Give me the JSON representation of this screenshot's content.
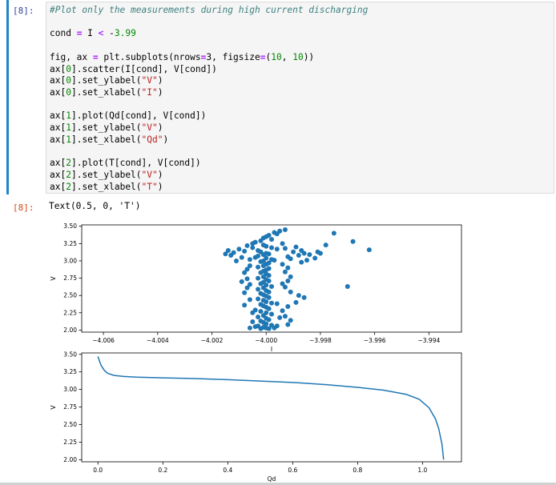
{
  "cell": {
    "in_prompt": "[8]:",
    "out_prompt": "[8]:",
    "output_text": "Text(0.5, 0, 'T')",
    "code_lines": [
      "#Plot only the measurements during high current discharging",
      "",
      "cond = I < -3.99",
      "",
      "fig, ax = plt.subplots(nrows=3, figsize=(10, 10))",
      "ax[0].scatter(I[cond], V[cond])",
      "ax[0].set_ylabel(\"V\")",
      "ax[0].set_xlabel(\"I\")",
      "",
      "ax[1].plot(Qd[cond], V[cond])",
      "ax[1].set_ylabel(\"V\")",
      "ax[1].set_xlabel(\"Qd\")",
      "",
      "ax[2].plot(T[cond], V[cond])",
      "ax[2].set_ylabel(\"V\")",
      "ax[2].set_xlabel(\"T\")"
    ]
  },
  "chart_data": [
    {
      "type": "scatter",
      "color": "#1f77b4",
      "xlabel": "I",
      "ylabel": "V",
      "xlim": [
        -4.0068,
        -3.9928
      ],
      "ylim": [
        1.97,
        3.52
      ],
      "xticks": [
        -4.006,
        -4.004,
        -4.002,
        -4.0,
        -3.998,
        -3.996,
        -3.994
      ],
      "xtick_labels": [
        "−4.006",
        "−4.004",
        "−4.002",
        "−4.000",
        "−3.998",
        "−3.996",
        "−3.994"
      ],
      "yticks": [
        2.0,
        2.25,
        2.5,
        2.75,
        3.0,
        3.25,
        3.5
      ],
      "ytick_labels": [
        "2.00",
        "2.25",
        "2.50",
        "2.75",
        "3.00",
        "3.25",
        "3.50"
      ],
      "points": [
        [
          -3.9993,
          3.45
        ],
        [
          -3.9995,
          3.43
        ],
        [
          -3.9997,
          3.41
        ],
        [
          -3.9996,
          3.39
        ],
        [
          -3.9999,
          3.37
        ],
        [
          -4.0,
          3.35
        ],
        [
          -4.0001,
          3.33
        ],
        [
          -3.9998,
          3.31
        ],
        [
          -4.0002,
          3.29
        ],
        [
          -4.0004,
          3.27
        ],
        [
          -4.0005,
          3.25
        ],
        [
          -4.0001,
          3.23
        ],
        [
          -4.0,
          3.21
        ],
        [
          -3.9998,
          3.19
        ],
        [
          -3.9996,
          3.17
        ],
        [
          -4.0003,
          3.15
        ],
        [
          -4.0002,
          3.13
        ],
        [
          -4.0,
          3.11
        ],
        [
          -3.9999,
          3.1
        ],
        [
          -4.0001,
          3.09
        ],
        [
          -4.0003,
          3.07
        ],
        [
          -4.0004,
          3.05
        ],
        [
          -4.0,
          3.04
        ],
        [
          -3.9998,
          3.02
        ],
        [
          -3.9997,
          3.01
        ],
        [
          -4.0001,
          3.0
        ],
        [
          -4.0002,
          2.99
        ],
        [
          -3.9999,
          2.97
        ],
        [
          -4.0,
          2.95
        ],
        [
          -4.0001,
          2.93
        ],
        [
          -4.0003,
          2.91
        ],
        [
          -3.9999,
          2.89
        ],
        [
          -4.0,
          2.87
        ],
        [
          -4.0001,
          2.85
        ],
        [
          -4.0002,
          2.83
        ],
        [
          -4.0,
          2.81
        ],
        [
          -3.9999,
          2.79
        ],
        [
          -4.0001,
          2.77
        ],
        [
          -4.0003,
          2.75
        ],
        [
          -4.0,
          2.73
        ],
        [
          -3.9999,
          2.71
        ],
        [
          -4.0001,
          2.69
        ],
        [
          -4.0002,
          2.67
        ],
        [
          -4.0,
          2.65
        ],
        [
          -3.9998,
          2.63
        ],
        [
          -4.0001,
          2.61
        ],
        [
          -4.0003,
          2.59
        ],
        [
          -4.0,
          2.57
        ],
        [
          -3.9999,
          2.55
        ],
        [
          -4.0002,
          2.53
        ],
        [
          -4.0001,
          2.51
        ],
        [
          -4.0,
          2.49
        ],
        [
          -3.9999,
          2.47
        ],
        [
          -4.0003,
          2.45
        ],
        [
          -4.0001,
          2.43
        ],
        [
          -4.0,
          2.41
        ],
        [
          -3.9998,
          2.39
        ],
        [
          -4.0002,
          2.37
        ],
        [
          -4.0001,
          2.35
        ],
        [
          -4.0,
          2.33
        ],
        [
          -3.9999,
          2.31
        ],
        [
          -4.0004,
          2.29
        ],
        [
          -4.0002,
          2.27
        ],
        [
          -4.0,
          2.25
        ],
        [
          -3.9998,
          2.23
        ],
        [
          -4.0001,
          2.21
        ],
        [
          -4.0003,
          2.19
        ],
        [
          -4.0,
          2.17
        ],
        [
          -3.9999,
          2.15
        ],
        [
          -4.0002,
          2.13
        ],
        [
          -4.0001,
          2.11
        ],
        [
          -4.0,
          2.09
        ],
        [
          -3.9998,
          2.07
        ],
        [
          -4.0003,
          2.06
        ],
        [
          -4.0004,
          2.05
        ],
        [
          -4.0001,
          2.04
        ],
        [
          -4.0,
          2.03
        ],
        [
          -3.9999,
          2.02
        ],
        [
          -3.9997,
          2.03
        ],
        [
          -4.0002,
          2.02
        ],
        [
          -4.0006,
          2.03
        ],
        [
          -3.9996,
          2.06
        ],
        [
          -4.0012,
          3.12
        ],
        [
          -4.0013,
          3.08
        ],
        [
          -4.001,
          3.17
        ],
        [
          -4.0009,
          3.05
        ],
        [
          -4.0008,
          3.14
        ],
        [
          -4.0007,
          3.22
        ],
        [
          -4.0011,
          3.0
        ],
        [
          -4.0006,
          3.02
        ],
        [
          -4.0005,
          3.19
        ],
        [
          -4.0014,
          3.15
        ],
        [
          -4.0015,
          3.1
        ],
        [
          -3.9992,
          3.06
        ],
        [
          -3.999,
          3.13
        ],
        [
          -3.9989,
          3.2
        ],
        [
          -3.9991,
          3.03
        ],
        [
          -3.9993,
          3.18
        ],
        [
          -3.9988,
          3.08
        ],
        [
          -3.9987,
          3.15
        ],
        [
          -3.9986,
          3.11
        ],
        [
          -3.9985,
          3.01
        ],
        [
          -3.9994,
          3.25
        ],
        [
          -3.9981,
          3.13
        ],
        [
          -3.998,
          3.11
        ],
        [
          -3.9975,
          3.4
        ],
        [
          -3.9968,
          3.28
        ],
        [
          -3.9962,
          3.16
        ],
        [
          -3.9987,
          2.98
        ],
        [
          -3.9984,
          3.09
        ],
        [
          -3.9982,
          3.04
        ],
        [
          -3.9978,
          3.23
        ],
        [
          -4.0006,
          2.93
        ],
        [
          -4.0007,
          2.88
        ],
        [
          -4.0008,
          2.83
        ],
        [
          -4.0007,
          2.74
        ],
        [
          -4.0009,
          2.7
        ],
        [
          -4.0006,
          2.66
        ],
        [
          -4.0007,
          2.61
        ],
        [
          -4.0008,
          2.54
        ],
        [
          -4.0006,
          2.44
        ],
        [
          -4.0008,
          2.36
        ],
        [
          -3.9994,
          2.95
        ],
        [
          -3.9992,
          2.9
        ],
        [
          -3.9993,
          2.84
        ],
        [
          -3.9991,
          2.77
        ],
        [
          -3.9992,
          2.71
        ],
        [
          -3.9994,
          2.67
        ],
        [
          -3.9993,
          2.62
        ],
        [
          -3.9991,
          2.55
        ],
        [
          -3.9988,
          2.5
        ],
        [
          -3.9986,
          2.47
        ],
        [
          -3.9989,
          2.4
        ],
        [
          -3.9992,
          2.34
        ],
        [
          -3.9994,
          2.28
        ],
        [
          -3.9993,
          2.2
        ],
        [
          -3.9991,
          2.14
        ],
        [
          -3.9992,
          2.08
        ],
        [
          -3.997,
          2.63
        ],
        [
          -4.0005,
          2.25
        ],
        [
          -4.0005,
          2.12
        ],
        [
          -3.9995,
          2.18
        ],
        [
          -3.9996,
          2.38
        ]
      ]
    },
    {
      "type": "line",
      "color": "#1f77b4",
      "xlabel": "Qd",
      "ylabel": "V",
      "xlim": [
        -0.05,
        1.12
      ],
      "ylim": [
        1.97,
        3.52
      ],
      "xticks": [
        0.0,
        0.2,
        0.4,
        0.6,
        0.8,
        1.0
      ],
      "xtick_labels": [
        "0.0",
        "0.2",
        "0.4",
        "0.6",
        "0.8",
        "1.0"
      ],
      "yticks": [
        2.0,
        2.25,
        2.5,
        2.75,
        3.0,
        3.25,
        3.5
      ],
      "ytick_labels": [
        "2.00",
        "2.25",
        "2.50",
        "2.75",
        "3.00",
        "3.25",
        "3.50"
      ],
      "x": [
        0.0,
        0.005,
        0.01,
        0.02,
        0.03,
        0.05,
        0.08,
        0.12,
        0.2,
        0.3,
        0.4,
        0.5,
        0.6,
        0.7,
        0.8,
        0.88,
        0.95,
        0.99,
        1.02,
        1.04,
        1.05,
        1.06,
        1.065
      ],
      "y": [
        3.47,
        3.4,
        3.34,
        3.27,
        3.23,
        3.2,
        3.185,
        3.175,
        3.165,
        3.155,
        3.14,
        3.12,
        3.1,
        3.07,
        3.03,
        2.99,
        2.93,
        2.86,
        2.74,
        2.58,
        2.44,
        2.22,
        2.0
      ]
    }
  ]
}
